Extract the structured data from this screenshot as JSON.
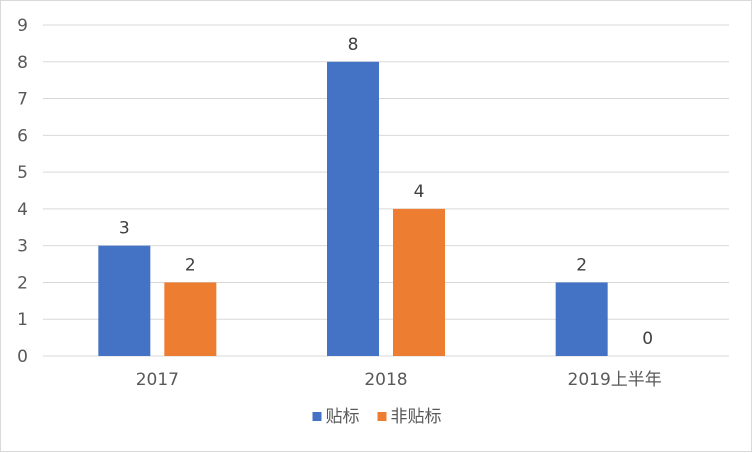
{
  "chart_data": {
    "type": "bar",
    "categories": [
      "2017",
      "2018",
      "2019上半年"
    ],
    "series": [
      {
        "name": "贴标",
        "values": [
          3,
          8,
          2
        ],
        "color": "#4472C4"
      },
      {
        "name": "非贴标",
        "values": [
          2,
          4,
          0
        ],
        "color": "#ED7D31"
      }
    ],
    "ylim": [
      0,
      9
    ],
    "yticks": [
      "0",
      "1",
      "2",
      "3",
      "4",
      "5",
      "6",
      "7",
      "8",
      "9"
    ],
    "grid": true,
    "legend_position": "bottom",
    "data_labels": true
  }
}
